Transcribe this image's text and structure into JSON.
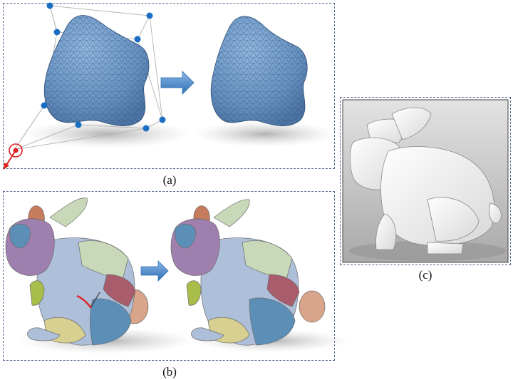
{
  "panels": {
    "a": {
      "caption": "(a)"
    },
    "b": {
      "caption": "(b)"
    },
    "c": {
      "caption": "(c)"
    }
  },
  "colors": {
    "frame": "#55688f",
    "mesh_fill": "#6f9bcb",
    "mesh_line": "#2e4f76",
    "control_point": "#1a6fc4",
    "handle": "#e02020",
    "arrow": "#4a86c5",
    "patch_colors": [
      "#9e7fae",
      "#aebfd9",
      "#c9d8b8",
      "#a8bd4a",
      "#d7d090",
      "#5c8fb8",
      "#a85c6c",
      "#c67c5c"
    ]
  },
  "icons": [
    "right-arrow-icon",
    "control-point-icon",
    "handle-circle-icon"
  ]
}
